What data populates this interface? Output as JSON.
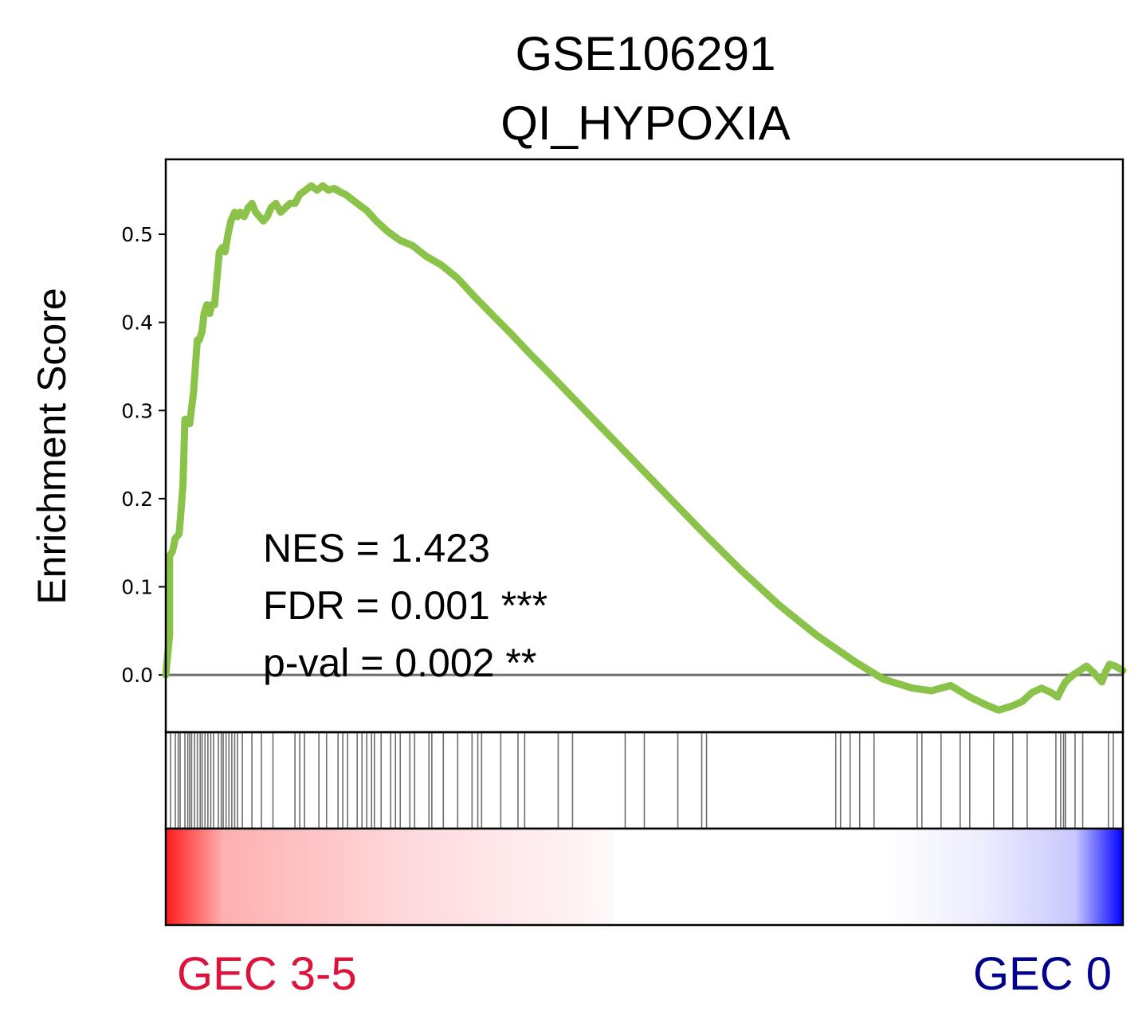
{
  "chart_data": {
    "type": "line",
    "title": "GSE106291",
    "subtitle": "QI_HYPOXIA",
    "xlabel": "",
    "ylabel": "Enrichment Score",
    "xlim": [
      0,
      1
    ],
    "ylim": [
      -0.065,
      0.585
    ],
    "yticks": [
      "0.0",
      "0.1",
      "0.2",
      "0.3",
      "0.4",
      "0.5"
    ],
    "grid": false,
    "baseline": 0,
    "line_color": "#8bc34a",
    "series": [
      {
        "name": "",
        "x": [
          0,
          0.004,
          0.004,
          0.007,
          0.01,
          0.014,
          0.018,
          0.02,
          0.023,
          0.025,
          0.029,
          0.033,
          0.035,
          0.038,
          0.04,
          0.043,
          0.046,
          0.048,
          0.051,
          0.053,
          0.056,
          0.059,
          0.062,
          0.065,
          0.068,
          0.072,
          0.075,
          0.078,
          0.082,
          0.086,
          0.09,
          0.094,
          0.098,
          0.102,
          0.106,
          0.11,
          0.115,
          0.12,
          0.125,
          0.13,
          0.135,
          0.14,
          0.146,
          0.152,
          0.158,
          0.164,
          0.17,
          0.176,
          0.182,
          0.188,
          0.194,
          0.2,
          0.21,
          0.22,
          0.232,
          0.245,
          0.258,
          0.272,
          0.288,
          0.305,
          0.322,
          0.34,
          0.36,
          0.38,
          0.4,
          0.44,
          0.48,
          0.52,
          0.56,
          0.6,
          0.64,
          0.68,
          0.72,
          0.75,
          0.78,
          0.8,
          0.82,
          0.84,
          0.855,
          0.87,
          0.885,
          0.895,
          0.905,
          0.915,
          0.925,
          0.932,
          0.935,
          0.94,
          0.948,
          0.955,
          0.962,
          0.97,
          0.978,
          0.982,
          0.986,
          0.992,
          1.0
        ],
        "y": [
          0.0,
          0.045,
          0.135,
          0.14,
          0.155,
          0.16,
          0.215,
          0.29,
          0.29,
          0.285,
          0.32,
          0.38,
          0.38,
          0.39,
          0.41,
          0.42,
          0.41,
          0.42,
          0.42,
          0.445,
          0.48,
          0.485,
          0.48,
          0.5,
          0.515,
          0.525,
          0.52,
          0.525,
          0.52,
          0.53,
          0.535,
          0.525,
          0.52,
          0.515,
          0.52,
          0.53,
          0.535,
          0.525,
          0.53,
          0.535,
          0.535,
          0.545,
          0.55,
          0.555,
          0.55,
          0.555,
          0.55,
          0.552,
          0.548,
          0.545,
          0.54,
          0.535,
          0.527,
          0.515,
          0.503,
          0.493,
          0.487,
          0.475,
          0.465,
          0.45,
          0.43,
          0.41,
          0.388,
          0.365,
          0.343,
          0.298,
          0.253,
          0.208,
          0.163,
          0.12,
          0.08,
          0.045,
          0.015,
          -0.005,
          -0.015,
          -0.018,
          -0.012,
          -0.025,
          -0.033,
          -0.04,
          -0.035,
          -0.03,
          -0.02,
          -0.015,
          -0.02,
          -0.025,
          -0.018,
          -0.008,
          0.0,
          0.005,
          0.01,
          0.002,
          -0.008,
          0.004,
          0.012,
          0.01,
          0.005
        ]
      }
    ],
    "hit_positions": [
      0.0,
      0.005,
      0.01,
      0.013,
      0.015,
      0.02,
      0.023,
      0.025,
      0.027,
      0.03,
      0.033,
      0.036,
      0.038,
      0.041,
      0.044,
      0.047,
      0.05,
      0.055,
      0.058,
      0.06,
      0.063,
      0.066,
      0.069,
      0.072,
      0.075,
      0.08,
      0.09,
      0.1,
      0.112,
      0.135,
      0.14,
      0.145,
      0.16,
      0.168,
      0.18,
      0.185,
      0.19,
      0.2,
      0.205,
      0.21,
      0.215,
      0.218,
      0.225,
      0.235,
      0.24,
      0.245,
      0.255,
      0.26,
      0.275,
      0.278,
      0.29,
      0.305,
      0.32,
      0.326,
      0.33,
      0.35,
      0.368,
      0.375,
      0.41,
      0.425,
      0.48,
      0.5,
      0.535,
      0.56,
      0.565,
      0.7,
      0.705,
      0.715,
      0.725,
      0.74,
      0.785,
      0.79,
      0.81,
      0.83,
      0.84,
      0.865,
      0.885,
      0.9,
      0.93,
      0.935,
      0.938,
      0.94,
      0.95,
      0.958,
      0.985,
      0.99
    ],
    "color_bar": {
      "left_color": "#ff1a1a",
      "right_color": "#0000ff"
    },
    "annotations": [
      "NES = 1.423",
      "FDR = 0.001 ***",
      "p-val = 0.002 **"
    ],
    "groups": [
      {
        "label": "GEC 3-5",
        "color": "#dc143c"
      },
      {
        "label": "GEC 0",
        "color": "#00008b"
      }
    ]
  }
}
